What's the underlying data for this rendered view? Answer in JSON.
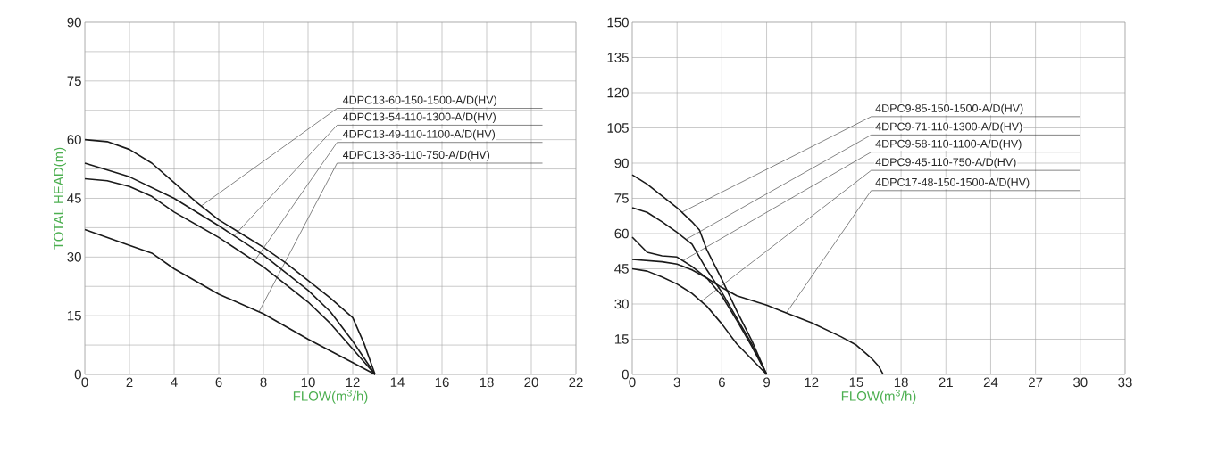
{
  "chart_data": [
    {
      "type": "line",
      "xlabel": "FLOW(m$^{3}$/h)",
      "ylabel": "TOTAL HEAD(m)",
      "xlim": [
        0,
        22
      ],
      "ylim": [
        0,
        90
      ],
      "xticks": [
        0,
        2,
        4,
        6,
        8,
        10,
        12,
        14,
        16,
        18,
        20,
        22
      ],
      "yticks": [
        0,
        {
          "value": 7.5,
          "label": null
        },
        15,
        {
          "value": 22.5,
          "label": null
        },
        30,
        {
          "value": 37.5,
          "label": null
        },
        45,
        {
          "value": 52.5,
          "label": null
        },
        60,
        {
          "value": 67.5,
          "label": null
        },
        75,
        {
          "value": 82.5,
          "label": null
        },
        90
      ],
      "grid": true,
      "series": [
        {
          "color": "#1a1a1a",
          "x": [
            0,
            1,
            2,
            3,
            4,
            5,
            6,
            7,
            8,
            9,
            10,
            11,
            12,
            12.5,
            13
          ],
          "values": [
            60,
            59.5,
            57.5,
            54,
            49,
            44,
            39.5,
            36,
            32.5,
            28.5,
            24,
            19.5,
            14.5,
            8,
            0
          ]
        },
        {
          "color": "#1a1a1a",
          "x": [
            0,
            2,
            4,
            6,
            8,
            10,
            11,
            12,
            13
          ],
          "values": [
            54,
            50.5,
            45,
            38,
            30.5,
            21.5,
            16,
            8.5,
            0
          ]
        },
        {
          "color": "#1a1a1a",
          "x": [
            0,
            1,
            2,
            3,
            4,
            6,
            8,
            10,
            11,
            12,
            13
          ],
          "values": [
            50,
            49.5,
            48,
            45.5,
            41.5,
            35,
            27.5,
            18.5,
            13,
            6.5,
            0
          ]
        },
        {
          "color": "#1a1a1a",
          "x": [
            0,
            2,
            3,
            4,
            6,
            8,
            10,
            12,
            13
          ],
          "values": [
            37,
            33,
            31,
            27,
            20.5,
            15.5,
            9,
            3,
            0
          ]
        }
      ],
      "annotations": [
        {
          "text": "4DPC13-60-150-1500-A/D(HV)",
          "x": 5.2,
          "y": 43
        },
        {
          "text": "4DPC13-54-110-1300-A/D(HV)",
          "x": 6.7,
          "y": 35.5
        },
        {
          "text": "4DPC13-49-110-1100-A/D(HV)",
          "x": 7.6,
          "y": 29
        },
        {
          "text": "4DPC13-36-110-750-A/D(HV)",
          "x": 7.8,
          "y": 16
        }
      ]
    },
    {
      "type": "line",
      "xlabel": "FLOW(m$^{3}$/h)",
      "xlim": [
        0,
        33
      ],
      "ylim": [
        0,
        150
      ],
      "xticks": [
        0,
        3,
        6,
        9,
        12,
        15,
        18,
        21,
        24,
        27,
        30,
        33
      ],
      "yticks": [
        0,
        15,
        30,
        45,
        60,
        75,
        90,
        105,
        120,
        135,
        150
      ],
      "grid": true,
      "series": [
        {
          "color": "#1a1a1a",
          "x": [
            0,
            1,
            2,
            3,
            4,
            4.5,
            5,
            6,
            7,
            8,
            9
          ],
          "values": [
            85,
            81,
            76,
            71,
            65,
            61.5,
            53,
            40.5,
            27,
            14.5,
            0
          ]
        },
        {
          "color": "#1a1a1a",
          "x": [
            0,
            1,
            2,
            3,
            4,
            5,
            6,
            7,
            8,
            9
          ],
          "values": [
            71,
            69,
            65,
            60.5,
            55.5,
            44.5,
            35,
            24,
            13,
            0
          ]
        },
        {
          "color": "#1a1a1a",
          "x": [
            0,
            1,
            2,
            3,
            4,
            5,
            6,
            7,
            8,
            9
          ],
          "values": [
            58.5,
            52,
            50.5,
            50,
            46,
            41,
            33.5,
            23,
            12,
            0
          ]
        },
        {
          "color": "#1a1a1a",
          "x": [
            0,
            1,
            2,
            3,
            4,
            5,
            6,
            7,
            8,
            9
          ],
          "values": [
            45,
            44,
            41.5,
            38.5,
            34.5,
            29,
            21.5,
            13,
            6.5,
            0
          ]
        },
        {
          "color": "#1a1a1a",
          "x": [
            0,
            2,
            3,
            4,
            5,
            6,
            7,
            9,
            10,
            12,
            14,
            15,
            16,
            16.5,
            16.8
          ],
          "values": [
            49,
            48,
            47,
            44.5,
            41,
            37,
            33.5,
            29.5,
            27,
            22,
            16,
            12.5,
            7,
            3.5,
            0
          ]
        }
      ],
      "annotations": [
        {
          "text": "4DPC9-85-150-1500-A/D(HV)",
          "x": 3.3,
          "y": 69
        },
        {
          "text": "4DPC9-71-110-1300-A/D(HV)",
          "x": 3.6,
          "y": 57.5
        },
        {
          "text": "4DPC9-58-110-1100-A/D(HV)",
          "x": 3.4,
          "y": 48.5
        },
        {
          "text": "4DPC9-45-110-750-A/D(HV)",
          "x": 4.6,
          "y": 31
        },
        {
          "text": "4DPC17-48-150-1500-A/D(HV)",
          "x": 10.3,
          "y": 26
        }
      ]
    }
  ]
}
